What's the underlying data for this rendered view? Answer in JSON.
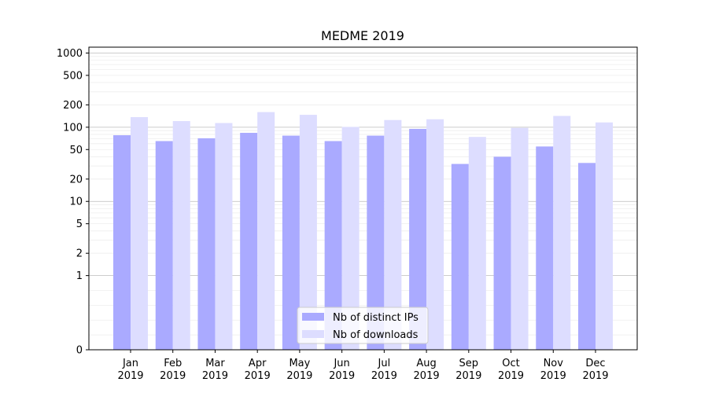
{
  "chart_data": {
    "type": "bar",
    "title": "MEDME 2019",
    "xlabel": "",
    "ylabel": "",
    "y_scale": "symlog",
    "ylim": [
      0,
      1200
    ],
    "y_ticks": [
      0,
      1,
      2,
      5,
      10,
      20,
      50,
      100,
      200,
      500,
      1000
    ],
    "y_tick_labels": [
      "0",
      "1",
      "2",
      "5",
      "10",
      "20",
      "50",
      "100",
      "200",
      "500",
      "1000"
    ],
    "categories": [
      "Jan 2019",
      "Feb 2019",
      "Mar 2019",
      "Apr 2019",
      "May 2019",
      "Jun 2019",
      "Jul 2019",
      "Aug 2019",
      "Sep 2019",
      "Oct 2019",
      "Nov 2019",
      "Dec 2019"
    ],
    "series": [
      {
        "name": "Nb of distinct IPs",
        "color": "#aaaaff",
        "values": [
          78,
          65,
          71,
          84,
          77,
          65,
          77,
          95,
          32,
          40,
          55,
          33
        ]
      },
      {
        "name": "Nb of downloads",
        "color": "#ddddff",
        "values": [
          137,
          121,
          114,
          160,
          147,
          101,
          125,
          128,
          74,
          98,
          142,
          116
        ]
      }
    ],
    "grid": true,
    "legend_position": "lower center"
  }
}
